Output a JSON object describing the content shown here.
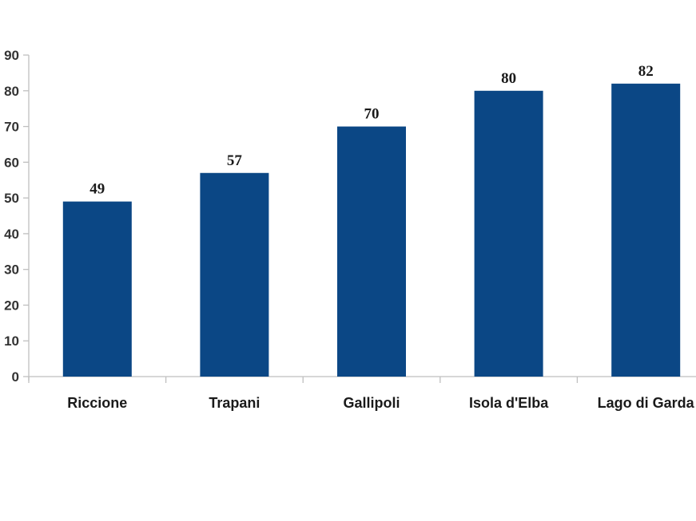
{
  "chart_data": {
    "type": "bar",
    "title": "",
    "xlabel": "",
    "ylabel": "",
    "categories": [
      "Riccione",
      "Trapani",
      "Gallipoli",
      "Isola d'Elba",
      "Lago di Garda"
    ],
    "values": [
      49,
      57,
      70,
      80,
      82
    ],
    "data_labels": [
      "49",
      "57",
      "70",
      "80",
      "82"
    ],
    "ylim": [
      0,
      90
    ],
    "yticks": [
      0,
      10,
      20,
      30,
      40,
      50,
      60,
      70,
      80,
      90
    ],
    "ytick_labels": [
      "0",
      "10",
      "20",
      "30",
      "40",
      "50",
      "60",
      "70",
      "80",
      "90"
    ],
    "grid": false,
    "legend": null,
    "colors": {
      "bar": "#0b4785",
      "axis": "#bfbfbf"
    }
  }
}
